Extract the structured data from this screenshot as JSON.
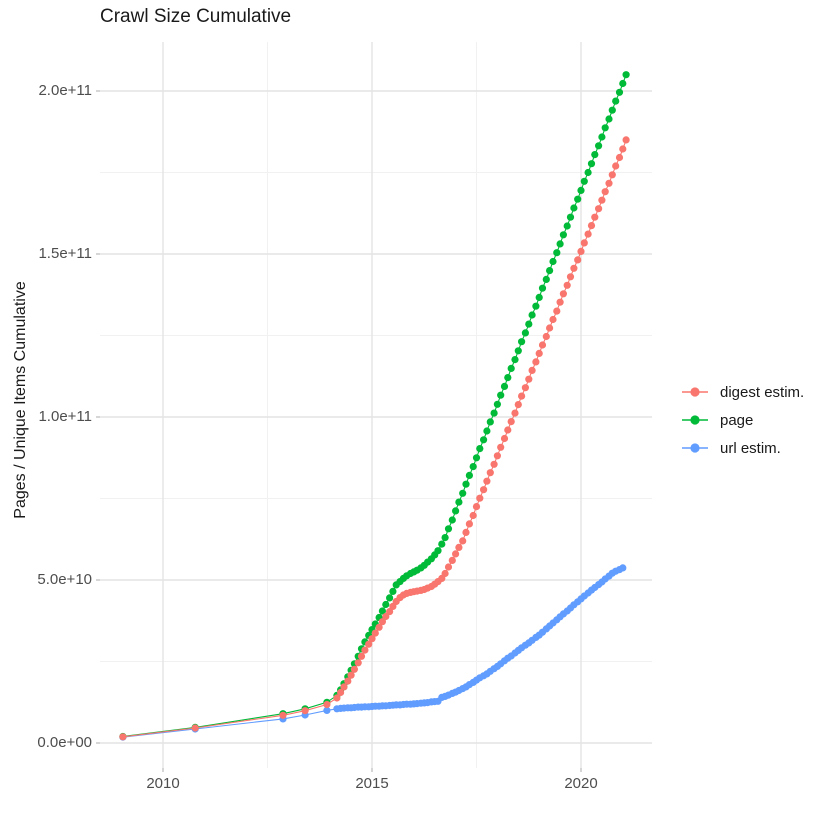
{
  "chart_data": {
    "type": "scatter",
    "title": "Crawl Size Cumulative",
    "xlabel": "",
    "ylabel": "Pages / Unique Items Cumulative",
    "x_unit": "year",
    "y_unit": "count (values stored in billions, 1e9)",
    "xlim": [
      2008.4,
      2021.7
    ],
    "ylim_e9": [
      -8,
      215
    ],
    "grid": "on",
    "x_ticks": {
      "major": [
        2010,
        2015,
        2020
      ],
      "minor": [
        2012.5,
        2017.5
      ],
      "labels": [
        "2010",
        "2015",
        "2020"
      ]
    },
    "y_ticks": {
      "major_e9": [
        0,
        50,
        100,
        150,
        200
      ],
      "minor_e9": [
        25,
        75,
        125,
        175
      ],
      "labels": [
        "0.0e+00",
        "5.0e+10",
        "1.0e+11",
        "1.5e+11",
        "2.0e+11"
      ]
    },
    "legend": {
      "position": "right",
      "items": [
        {
          "label": "digest estim.",
          "color": "#F8766D"
        },
        {
          "label": "page",
          "color": "#00BA38"
        },
        {
          "label": "url estim.",
          "color": "#619CFF"
        }
      ]
    },
    "series": [
      {
        "name": "url estim.",
        "color": "#619CFF",
        "points_year_billions": [
          [
            2009.04,
            1.8
          ],
          [
            2010.77,
            4.3
          ],
          [
            2012.87,
            7.4
          ],
          [
            2013.4,
            8.6
          ],
          [
            2013.92,
            10.0
          ],
          [
            2014.16,
            10.5
          ],
          [
            2014.25,
            10.6
          ],
          [
            2014.33,
            10.7
          ],
          [
            2014.42,
            10.8
          ],
          [
            2014.5,
            10.8
          ],
          [
            2014.58,
            10.9
          ],
          [
            2014.67,
            11.0
          ],
          [
            2014.75,
            11.0
          ],
          [
            2014.83,
            11.1
          ],
          [
            2014.92,
            11.1
          ],
          [
            2015.0,
            11.2
          ],
          [
            2015.08,
            11.3
          ],
          [
            2015.17,
            11.3
          ],
          [
            2015.25,
            11.4
          ],
          [
            2015.33,
            11.4
          ],
          [
            2015.42,
            11.5
          ],
          [
            2015.5,
            11.6
          ],
          [
            2015.58,
            11.7
          ],
          [
            2015.67,
            11.7
          ],
          [
            2015.75,
            11.8
          ],
          [
            2015.83,
            11.9
          ],
          [
            2015.92,
            11.9
          ],
          [
            2016.0,
            12.0
          ],
          [
            2016.08,
            12.1
          ],
          [
            2016.17,
            12.2
          ],
          [
            2016.25,
            12.3
          ],
          [
            2016.33,
            12.4
          ],
          [
            2016.42,
            12.6
          ],
          [
            2016.5,
            12.7
          ],
          [
            2016.58,
            12.8
          ],
          [
            2016.67,
            14.0
          ],
          [
            2016.75,
            14.3
          ],
          [
            2016.83,
            14.7
          ],
          [
            2016.92,
            15.2
          ],
          [
            2017.0,
            15.6
          ],
          [
            2017.08,
            16.1
          ],
          [
            2017.17,
            16.7
          ],
          [
            2017.25,
            17.2
          ],
          [
            2017.33,
            17.9
          ],
          [
            2017.42,
            18.6
          ],
          [
            2017.5,
            19.3
          ],
          [
            2017.58,
            20.0
          ],
          [
            2017.67,
            20.6
          ],
          [
            2017.75,
            21.2
          ],
          [
            2017.83,
            22.0
          ],
          [
            2017.92,
            22.8
          ],
          [
            2018.0,
            23.5
          ],
          [
            2018.08,
            24.3
          ],
          [
            2018.17,
            25.2
          ],
          [
            2018.25,
            26.0
          ],
          [
            2018.33,
            26.7
          ],
          [
            2018.42,
            27.6
          ],
          [
            2018.5,
            28.4
          ],
          [
            2018.58,
            29.2
          ],
          [
            2018.67,
            30.0
          ],
          [
            2018.75,
            30.7
          ],
          [
            2018.83,
            31.5
          ],
          [
            2018.92,
            32.4
          ],
          [
            2019.0,
            33.1
          ],
          [
            2019.08,
            34.0
          ],
          [
            2019.17,
            35.0
          ],
          [
            2019.25,
            35.9
          ],
          [
            2019.33,
            36.8
          ],
          [
            2019.42,
            37.8
          ],
          [
            2019.5,
            38.7
          ],
          [
            2019.58,
            39.6
          ],
          [
            2019.67,
            40.5
          ],
          [
            2019.75,
            41.4
          ],
          [
            2019.83,
            42.4
          ],
          [
            2019.92,
            43.3
          ],
          [
            2020.0,
            44.2
          ],
          [
            2020.08,
            45.1
          ],
          [
            2020.17,
            46.0
          ],
          [
            2020.25,
            46.9
          ],
          [
            2020.33,
            47.7
          ],
          [
            2020.42,
            48.6
          ],
          [
            2020.5,
            49.4
          ],
          [
            2020.58,
            50.3
          ],
          [
            2020.67,
            51.2
          ],
          [
            2020.75,
            52.1
          ],
          [
            2020.83,
            52.7
          ],
          [
            2020.92,
            53.2
          ],
          [
            2021.0,
            53.7
          ]
        ]
      },
      {
        "name": "page",
        "color": "#00BA38",
        "points_year_billions": [
          [
            2009.04,
            2.0
          ],
          [
            2010.77,
            4.8
          ],
          [
            2012.87,
            9.0
          ],
          [
            2013.4,
            10.5
          ],
          [
            2013.92,
            12.5
          ],
          [
            2014.16,
            14.6
          ],
          [
            2014.25,
            16.3
          ],
          [
            2014.33,
            18.2
          ],
          [
            2014.42,
            20.3
          ],
          [
            2014.5,
            22.3
          ],
          [
            2014.58,
            24.3
          ],
          [
            2014.67,
            26.6
          ],
          [
            2014.75,
            28.9
          ],
          [
            2014.83,
            31.0
          ],
          [
            2014.92,
            33.0
          ],
          [
            2015.0,
            34.8
          ],
          [
            2015.08,
            36.5
          ],
          [
            2015.17,
            38.5
          ],
          [
            2015.25,
            40.5
          ],
          [
            2015.33,
            42.5
          ],
          [
            2015.42,
            44.5
          ],
          [
            2015.5,
            46.5
          ],
          [
            2015.58,
            48.5
          ],
          [
            2015.67,
            49.5
          ],
          [
            2015.75,
            50.5
          ],
          [
            2015.83,
            51.3
          ],
          [
            2015.92,
            52.0
          ],
          [
            2016.0,
            52.5
          ],
          [
            2016.08,
            53.0
          ],
          [
            2016.17,
            53.7
          ],
          [
            2016.25,
            54.5
          ],
          [
            2016.33,
            55.5
          ],
          [
            2016.42,
            56.5
          ],
          [
            2016.5,
            57.7
          ],
          [
            2016.58,
            59.0
          ],
          [
            2016.67,
            61.0
          ],
          [
            2016.75,
            63.0
          ],
          [
            2016.83,
            65.7
          ],
          [
            2016.92,
            68.4
          ],
          [
            2017.0,
            71.2
          ],
          [
            2017.08,
            73.9
          ],
          [
            2017.17,
            76.6
          ],
          [
            2017.25,
            79.4
          ],
          [
            2017.33,
            82.1
          ],
          [
            2017.42,
            84.8
          ],
          [
            2017.5,
            87.5
          ],
          [
            2017.58,
            90.3
          ],
          [
            2017.67,
            93.0
          ],
          [
            2017.75,
            95.7
          ],
          [
            2017.83,
            98.5
          ],
          [
            2017.92,
            101.2
          ],
          [
            2018.0,
            103.9
          ],
          [
            2018.08,
            106.7
          ],
          [
            2018.17,
            109.4
          ],
          [
            2018.25,
            112.1
          ],
          [
            2018.33,
            114.9
          ],
          [
            2018.42,
            117.6
          ],
          [
            2018.5,
            120.3
          ],
          [
            2018.58,
            123.1
          ],
          [
            2018.67,
            125.8
          ],
          [
            2018.75,
            128.5
          ],
          [
            2018.83,
            131.3
          ],
          [
            2018.92,
            134.0
          ],
          [
            2019.0,
            136.7
          ],
          [
            2019.08,
            139.5
          ],
          [
            2019.17,
            142.2
          ],
          [
            2019.25,
            144.9
          ],
          [
            2019.33,
            147.7
          ],
          [
            2019.42,
            150.4
          ],
          [
            2019.5,
            153.1
          ],
          [
            2019.58,
            155.9
          ],
          [
            2019.67,
            158.6
          ],
          [
            2019.75,
            161.3
          ],
          [
            2019.83,
            164.1
          ],
          [
            2019.92,
            166.8
          ],
          [
            2020.0,
            169.5
          ],
          [
            2020.08,
            172.3
          ],
          [
            2020.17,
            175.0
          ],
          [
            2020.25,
            177.7
          ],
          [
            2020.33,
            180.5
          ],
          [
            2020.42,
            183.2
          ],
          [
            2020.5,
            185.9
          ],
          [
            2020.58,
            188.7
          ],
          [
            2020.67,
            191.4
          ],
          [
            2020.75,
            194.1
          ],
          [
            2020.83,
            196.9
          ],
          [
            2020.92,
            199.6
          ],
          [
            2021.0,
            202.3
          ],
          [
            2021.08,
            205.0
          ]
        ]
      },
      {
        "name": "digest estim.",
        "color": "#F8766D",
        "points_year_billions": [
          [
            2009.04,
            1.9
          ],
          [
            2010.77,
            4.6
          ],
          [
            2012.87,
            8.5
          ],
          [
            2013.4,
            9.9
          ],
          [
            2013.92,
            11.8
          ],
          [
            2014.16,
            13.8
          ],
          [
            2014.25,
            15.5
          ],
          [
            2014.33,
            17.2
          ],
          [
            2014.42,
            19.0
          ],
          [
            2014.5,
            20.8
          ],
          [
            2014.58,
            22.6
          ],
          [
            2014.67,
            24.6
          ],
          [
            2014.75,
            26.6
          ],
          [
            2014.83,
            28.5
          ],
          [
            2014.92,
            30.3
          ],
          [
            2015.0,
            32.0
          ],
          [
            2015.08,
            33.7
          ],
          [
            2015.17,
            35.5
          ],
          [
            2015.25,
            37.2
          ],
          [
            2015.33,
            38.8
          ],
          [
            2015.42,
            40.3
          ],
          [
            2015.5,
            41.9
          ],
          [
            2015.58,
            43.4
          ],
          [
            2015.67,
            44.6
          ],
          [
            2015.75,
            45.4
          ],
          [
            2015.83,
            45.9
          ],
          [
            2015.92,
            46.2
          ],
          [
            2016.0,
            46.4
          ],
          [
            2016.08,
            46.6
          ],
          [
            2016.17,
            46.8
          ],
          [
            2016.25,
            47.1
          ],
          [
            2016.33,
            47.5
          ],
          [
            2016.42,
            48.0
          ],
          [
            2016.5,
            48.7
          ],
          [
            2016.58,
            49.5
          ],
          [
            2016.67,
            50.5
          ],
          [
            2016.75,
            52.0
          ],
          [
            2016.83,
            54.0
          ],
          [
            2016.92,
            56.0
          ],
          [
            2017.0,
            58.0
          ],
          [
            2017.08,
            60.0
          ],
          [
            2017.17,
            62.0
          ],
          [
            2017.25,
            64.6
          ],
          [
            2017.33,
            67.2
          ],
          [
            2017.42,
            69.8
          ],
          [
            2017.5,
            72.5
          ],
          [
            2017.58,
            75.1
          ],
          [
            2017.67,
            77.7
          ],
          [
            2017.75,
            80.3
          ],
          [
            2017.83,
            82.9
          ],
          [
            2017.92,
            85.5
          ],
          [
            2018.0,
            88.1
          ],
          [
            2018.08,
            90.7
          ],
          [
            2018.17,
            93.4
          ],
          [
            2018.25,
            96.0
          ],
          [
            2018.33,
            98.6
          ],
          [
            2018.42,
            101.2
          ],
          [
            2018.5,
            103.8
          ],
          [
            2018.58,
            106.4
          ],
          [
            2018.67,
            109.0
          ],
          [
            2018.75,
            111.6
          ],
          [
            2018.83,
            114.3
          ],
          [
            2018.92,
            116.9
          ],
          [
            2019.0,
            119.5
          ],
          [
            2019.08,
            122.1
          ],
          [
            2019.17,
            124.7
          ],
          [
            2019.25,
            127.3
          ],
          [
            2019.33,
            129.9
          ],
          [
            2019.42,
            132.5
          ],
          [
            2019.5,
            135.2
          ],
          [
            2019.58,
            137.8
          ],
          [
            2019.67,
            140.4
          ],
          [
            2019.75,
            143.0
          ],
          [
            2019.83,
            145.6
          ],
          [
            2019.92,
            148.2
          ],
          [
            2020.0,
            150.8
          ],
          [
            2020.08,
            153.4
          ],
          [
            2020.17,
            156.1
          ],
          [
            2020.25,
            158.7
          ],
          [
            2020.33,
            161.3
          ],
          [
            2020.42,
            163.9
          ],
          [
            2020.5,
            166.5
          ],
          [
            2020.58,
            169.1
          ],
          [
            2020.67,
            171.7
          ],
          [
            2020.75,
            174.3
          ],
          [
            2020.83,
            177.0
          ],
          [
            2020.92,
            179.6
          ],
          [
            2021.0,
            182.2
          ],
          [
            2021.08,
            185.0
          ]
        ]
      }
    ]
  }
}
